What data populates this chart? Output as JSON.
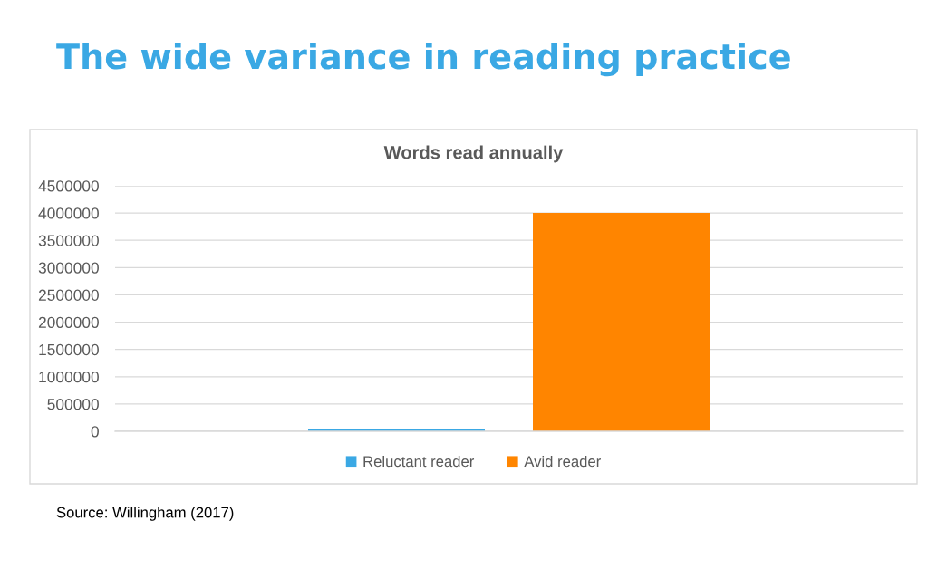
{
  "chart_data": {
    "type": "bar",
    "title": "The wide variance in reading practice",
    "subtitle": "Words read annually",
    "categories": [
      null
    ],
    "series": [
      {
        "name": "Reluctant reader",
        "color": "#3aa8e4",
        "values": [
          40000
        ]
      },
      {
        "name": "Avid reader",
        "color": "#ff8500",
        "values": [
          4000000
        ]
      }
    ],
    "ylim": [
      0,
      4500000
    ],
    "yticks": [
      0,
      500000,
      1000000,
      1500000,
      2000000,
      2500000,
      3000000,
      3500000,
      4000000,
      4500000
    ],
    "grid": "y",
    "legend": "bottom",
    "tick_labels": "y",
    "annotations": [
      "Source: Willingham (2017)"
    ]
  }
}
